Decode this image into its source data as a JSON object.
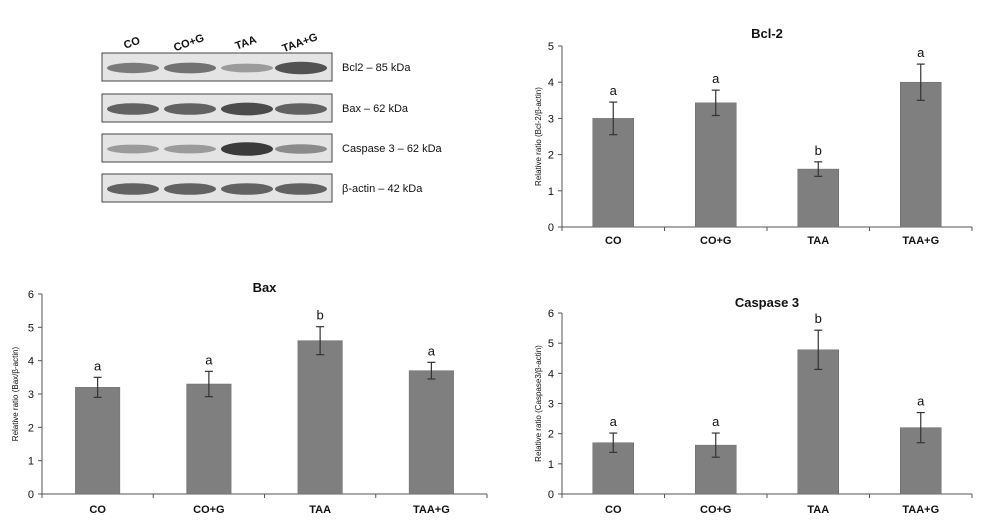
{
  "blot": {
    "lanes": [
      "CO",
      "CO+G",
      "TAA",
      "TAA+G"
    ],
    "bands": [
      {
        "label": "Bcl2 – 85 kDa",
        "intensity": [
          0.55,
          0.6,
          0.35,
          0.8
        ]
      },
      {
        "label": "Bax – 62 kDa",
        "intensity": [
          0.7,
          0.7,
          0.85,
          0.7
        ]
      },
      {
        "label": "Caspase 3 – 62 kDa",
        "intensity": [
          0.35,
          0.35,
          0.95,
          0.45
        ]
      },
      {
        "label": "β-actin – 42 kDa",
        "intensity": [
          0.7,
          0.7,
          0.7,
          0.7
        ]
      }
    ]
  },
  "colors": {
    "bar": "#7f7f7f",
    "bar_edge": "#6a6a6a",
    "axis": "#555555",
    "error": "#333333"
  },
  "chart_data": [
    {
      "type": "bar",
      "title": "Bcl-2",
      "ylabel": "Relative ratio (Bcl-2/β-actin)",
      "categories": [
        "CO",
        "CO+G",
        "TAA",
        "TAA+G"
      ],
      "values": [
        3.0,
        3.43,
        1.6,
        4.0
      ],
      "errors": [
        0.45,
        0.35,
        0.2,
        0.5
      ],
      "labels": [
        "a",
        "a",
        "b",
        "a"
      ],
      "ylim": [
        0,
        5
      ],
      "yticks": [
        0,
        1,
        2,
        3,
        4,
        5
      ]
    },
    {
      "type": "bar",
      "title": "Bax",
      "ylabel": "Relative ratio (Bax/β-actin)",
      "categories": [
        "CO",
        "CO+G",
        "TAA",
        "TAA+G"
      ],
      "values": [
        3.2,
        3.3,
        4.6,
        3.7
      ],
      "errors": [
        0.3,
        0.38,
        0.42,
        0.25
      ],
      "labels": [
        "a",
        "a",
        "b",
        "a"
      ],
      "ylim": [
        0,
        6
      ],
      "yticks": [
        0,
        1,
        2,
        3,
        4,
        5,
        6
      ]
    },
    {
      "type": "bar",
      "title": "Caspase 3",
      "ylabel": "Relative ratio (Caspase3/β-actin)",
      "categories": [
        "CO",
        "CO+G",
        "TAA",
        "TAA+G"
      ],
      "values": [
        1.7,
        1.62,
        4.78,
        2.2
      ],
      "errors": [
        0.32,
        0.4,
        0.65,
        0.5
      ],
      "labels": [
        "a",
        "a",
        "b",
        "a"
      ],
      "ylim": [
        0,
        6
      ],
      "yticks": [
        0,
        1,
        2,
        3,
        4,
        5,
        6
      ]
    }
  ]
}
